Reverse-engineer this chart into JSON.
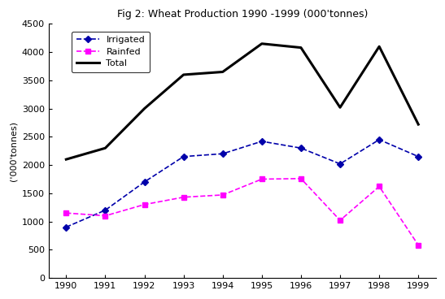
{
  "title": "Fig 2: Wheat Production 1990 -1999 (000'tonnes)",
  "xlabel": "",
  "ylabel": "('000'tonnes)",
  "years": [
    1990,
    1991,
    1992,
    1993,
    1994,
    1995,
    1996,
    1997,
    1998,
    1999
  ],
  "irrigated": [
    900,
    1200,
    1700,
    2150,
    2200,
    2420,
    2300,
    2020,
    2450,
    2150
  ],
  "rainfed": [
    1150,
    1100,
    1300,
    1430,
    1470,
    1750,
    1760,
    1020,
    1620,
    580
  ],
  "total": [
    2100,
    2300,
    3000,
    3600,
    3650,
    4150,
    4080,
    3020,
    4100,
    2720
  ],
  "irrigated_color": "#0000AA",
  "rainfed_color": "#FF00FF",
  "total_color": "#000000",
  "background_color": "#FFFFFF",
  "ylim": [
    0,
    4500
  ],
  "yticks": [
    0,
    500,
    1000,
    1500,
    2000,
    2500,
    3000,
    3500,
    4000,
    4500
  ]
}
